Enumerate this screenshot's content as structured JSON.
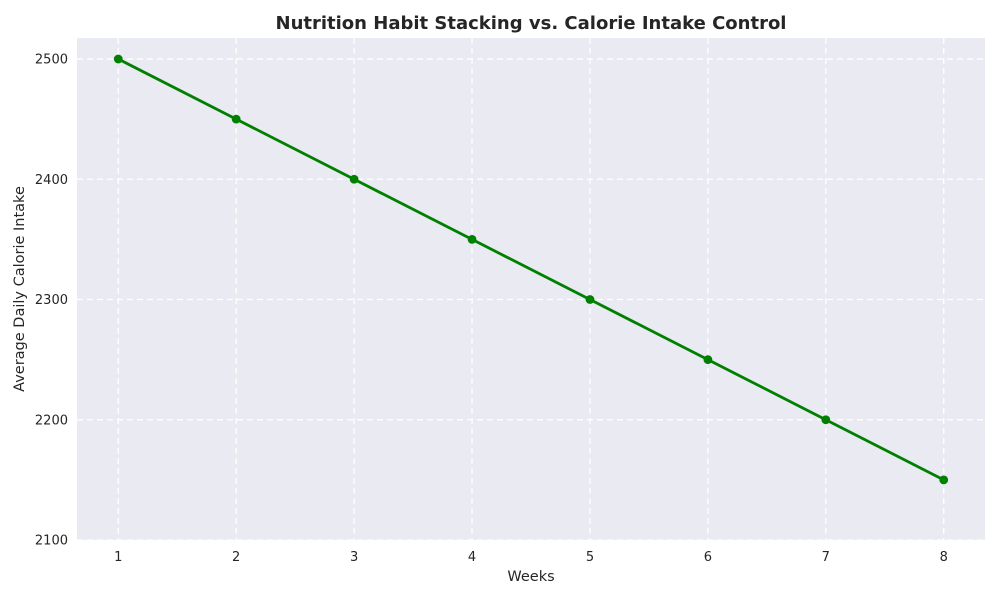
{
  "figure": {
    "background_color": "#ffffff",
    "text_color": "#262626"
  },
  "chart_data": {
    "type": "line",
    "title": "Nutrition Habit Stacking vs. Calorie Intake Control",
    "xlabel": "Weeks",
    "ylabel": "Average Daily Calorie Intake",
    "x": [
      1,
      2,
      3,
      4,
      5,
      6,
      7,
      8
    ],
    "series": [
      {
        "values": [
          2500,
          2450,
          2400,
          2350,
          2300,
          2250,
          2200,
          2150
        ],
        "color": "#008000",
        "marker": "circle",
        "line_style": "solid",
        "line_width": 2.8,
        "marker_radius": 4.4
      }
    ],
    "xticks": [
      1,
      2,
      3,
      4,
      5,
      6,
      7,
      8
    ],
    "yticks": [
      2100,
      2200,
      2300,
      2400,
      2500
    ],
    "xlim": [
      0.65,
      8.35
    ],
    "ylim": [
      2100,
      2517.5
    ],
    "grid": true,
    "grid_style": "dashed",
    "grid_dash": "6 4",
    "grid_color": "#ffffff",
    "plot_background_color": "#eaeaf2",
    "text_color": "#262626",
    "legend": "none"
  }
}
